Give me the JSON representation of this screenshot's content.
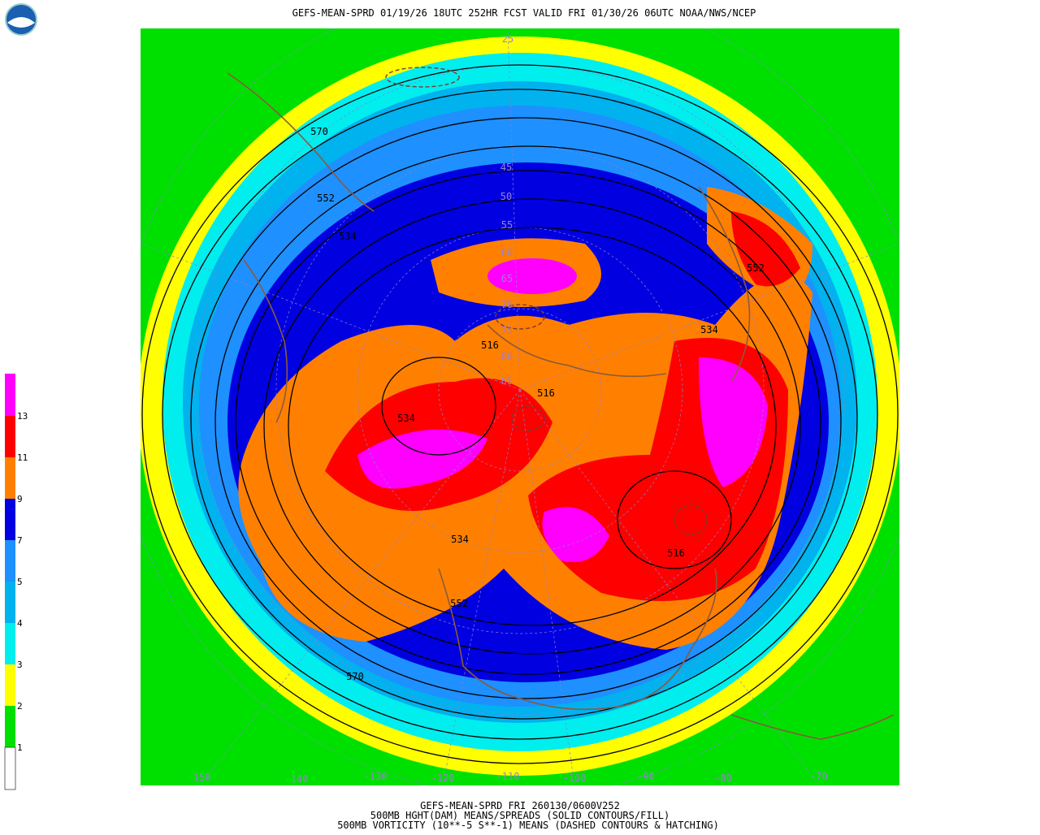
{
  "header": {
    "title": "GEFS-MEAN-SPRD 01/19/26 18UTC 252HR FCST VALID FRI 01/30/26 06UTC NOAA/NWS/NCEP"
  },
  "legend": {
    "labels": [
      "13",
      "11",
      "9",
      "7",
      "5",
      "4",
      "3",
      "2",
      "1"
    ]
  },
  "map": {
    "latitude_labels": [
      "25",
      "45",
      "50",
      "55",
      "60",
      "65",
      "70",
      "75",
      "80",
      "85"
    ],
    "longitude_labels": [
      "-150",
      "-140",
      "-130",
      "-120",
      "-110",
      "-100",
      "-90",
      "-80",
      "-70"
    ],
    "contour_labels": [
      "570",
      "552",
      "534",
      "516",
      "516",
      "534",
      "534",
      "552",
      "570",
      "516",
      "534",
      "552"
    ]
  },
  "footer": {
    "lines": [
      "GEFS-MEAN-SPRD FRI 260130/0600V252",
      "500MB HGHT(DAM) MEANS/SPREADS (SOLID CONTOURS/FILL)",
      "500MB VORTICITY (10**-5 S**-1) MEANS (DASHED CONTOURS & HATCHING)"
    ]
  }
}
